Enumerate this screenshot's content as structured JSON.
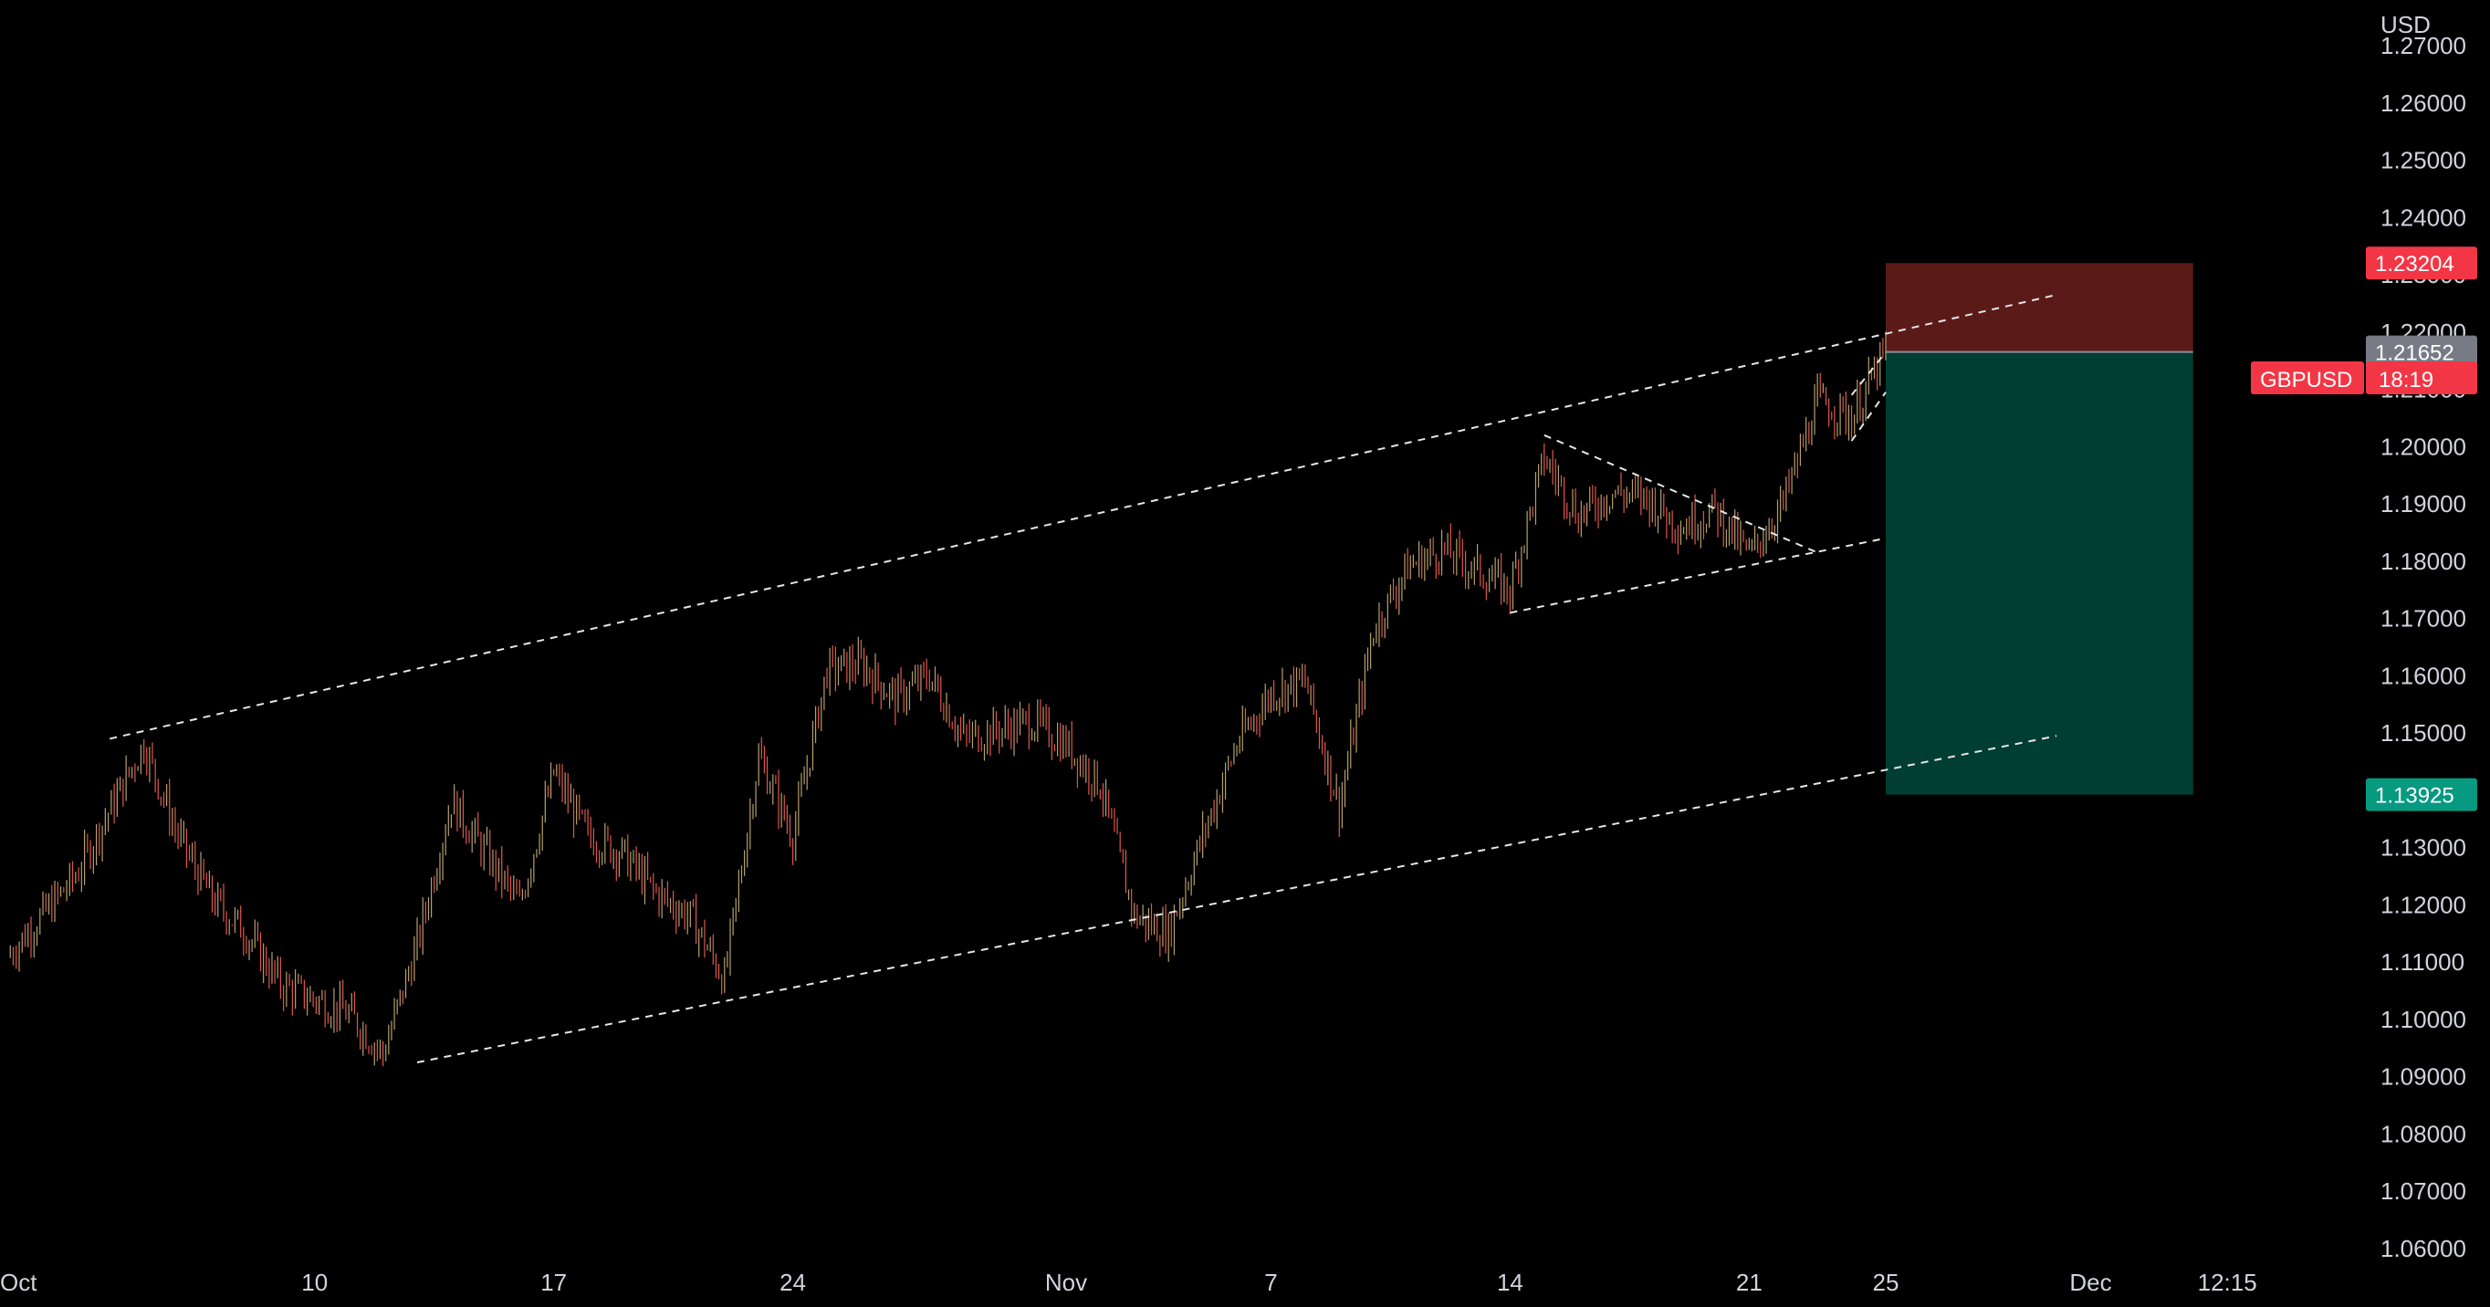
{
  "currency_label": "USD",
  "symbol_tag": {
    "name": "GBPUSD",
    "countdown": "18:19",
    "color": "#f23645"
  },
  "price_tags": [
    {
      "label": "1.23204",
      "color": "#f23645",
      "value": 1.23204
    },
    {
      "label": "1.21652",
      "color": "#787b86",
      "value": 1.21652
    },
    {
      "label": "1.13925",
      "color": "#089981",
      "value": 1.13925
    }
  ],
  "colors": {
    "candle_up": "#b5a06a",
    "candle_down": "#e0574d",
    "stop_zone": "#5a1a18",
    "target_zone": "#003d33",
    "trendline": "#e6e6e6"
  },
  "chart_data": {
    "type": "line",
    "title": "",
    "xlabel": "",
    "ylabel": "USD",
    "x_tick_labels": [
      "Oct",
      "10",
      "17",
      "24",
      "Nov",
      "7",
      "14",
      "21",
      "25",
      "Dec",
      "12:15"
    ],
    "y_tick_labels": [
      "1.06000",
      "1.07000",
      "1.08000",
      "1.09000",
      "1.10000",
      "1.11000",
      "1.12000",
      "1.13000",
      "1.15000",
      "1.16000",
      "1.17000",
      "1.18000",
      "1.19000",
      "1.20000",
      "1.21000",
      "1.22000",
      "1.23000",
      "1.24000",
      "1.25000",
      "1.26000",
      "1.27000"
    ],
    "ylim": [
      1.058,
      1.274
    ],
    "xlim": [
      "2022-10-01",
      "2022-12-05"
    ],
    "series": [
      {
        "x": [
          "2022-10-01",
          "2022-10-03",
          "2022-10-05",
          "2022-10-06",
          "2022-10-07",
          "2022-10-08",
          "2022-10-09",
          "2022-10-11",
          "2022-10-12",
          "2022-10-13",
          "2022-10-14",
          "2022-10-16",
          "2022-10-17",
          "2022-10-18",
          "2022-10-19",
          "2022-10-20",
          "2022-10-21",
          "2022-10-22",
          "2022-10-23",
          "2022-10-24",
          "2022-10-25",
          "2022-10-26",
          "2022-10-27",
          "2022-10-28",
          "2022-10-29",
          "2022-10-31",
          "2022-11-01",
          "2022-11-02",
          "2022-11-03",
          "2022-11-04",
          "2022-11-05",
          "2022-11-06",
          "2022-11-07",
          "2022-11-08",
          "2022-11-09",
          "2022-11-10",
          "2022-11-11",
          "2022-11-12",
          "2022-11-14",
          "2022-11-15",
          "2022-11-16",
          "2022-11-17",
          "2022-11-18",
          "2022-11-19",
          "2022-11-20",
          "2022-11-21",
          "2022-11-22",
          "2022-11-23",
          "2022-11-24",
          "2022-11-25"
        ],
        "y": [
          1.111,
          1.125,
          1.148,
          1.132,
          1.121,
          1.115,
          1.106,
          1.101,
          1.094,
          1.113,
          1.138,
          1.12,
          1.143,
          1.132,
          1.129,
          1.122,
          1.118,
          1.107,
          1.146,
          1.132,
          1.161,
          1.162,
          1.156,
          1.16,
          1.149,
          1.152,
          1.148,
          1.141,
          1.118,
          1.115,
          1.132,
          1.148,
          1.157,
          1.159,
          1.137,
          1.168,
          1.179,
          1.182,
          1.175,
          1.198,
          1.188,
          1.192,
          1.191,
          1.186,
          1.189,
          1.181,
          1.19,
          1.208,
          1.205,
          1.2165
        ]
      }
    ],
    "trendlines": [
      {
        "from": [
          "2022-10-04",
          1.149
        ],
        "to": [
          "2022-11-30",
          1.2265
        ]
      },
      {
        "from": [
          "2022-10-13",
          1.0925
        ],
        "to": [
          "2022-11-30",
          1.1495
        ]
      },
      {
        "from": [
          "2022-11-15",
          1.202
        ],
        "to": [
          "2022-11-23",
          1.1815
        ]
      },
      {
        "from": [
          "2022-11-14",
          1.171
        ],
        "to": [
          "2022-11-25",
          1.184
        ]
      },
      {
        "from": [
          "2022-11-24",
          1.201
        ],
        "to": [
          "2022-11-25",
          1.2095
        ]
      },
      {
        "from": [
          "2022-11-24",
          1.209
        ],
        "to": [
          "2022-11-25",
          1.2165
        ]
      }
    ],
    "position": {
      "type": "short",
      "entry": 1.21652,
      "stop": 1.23204,
      "target": 1.13925,
      "from": "2022-11-25",
      "to": "2022-12-04"
    }
  }
}
